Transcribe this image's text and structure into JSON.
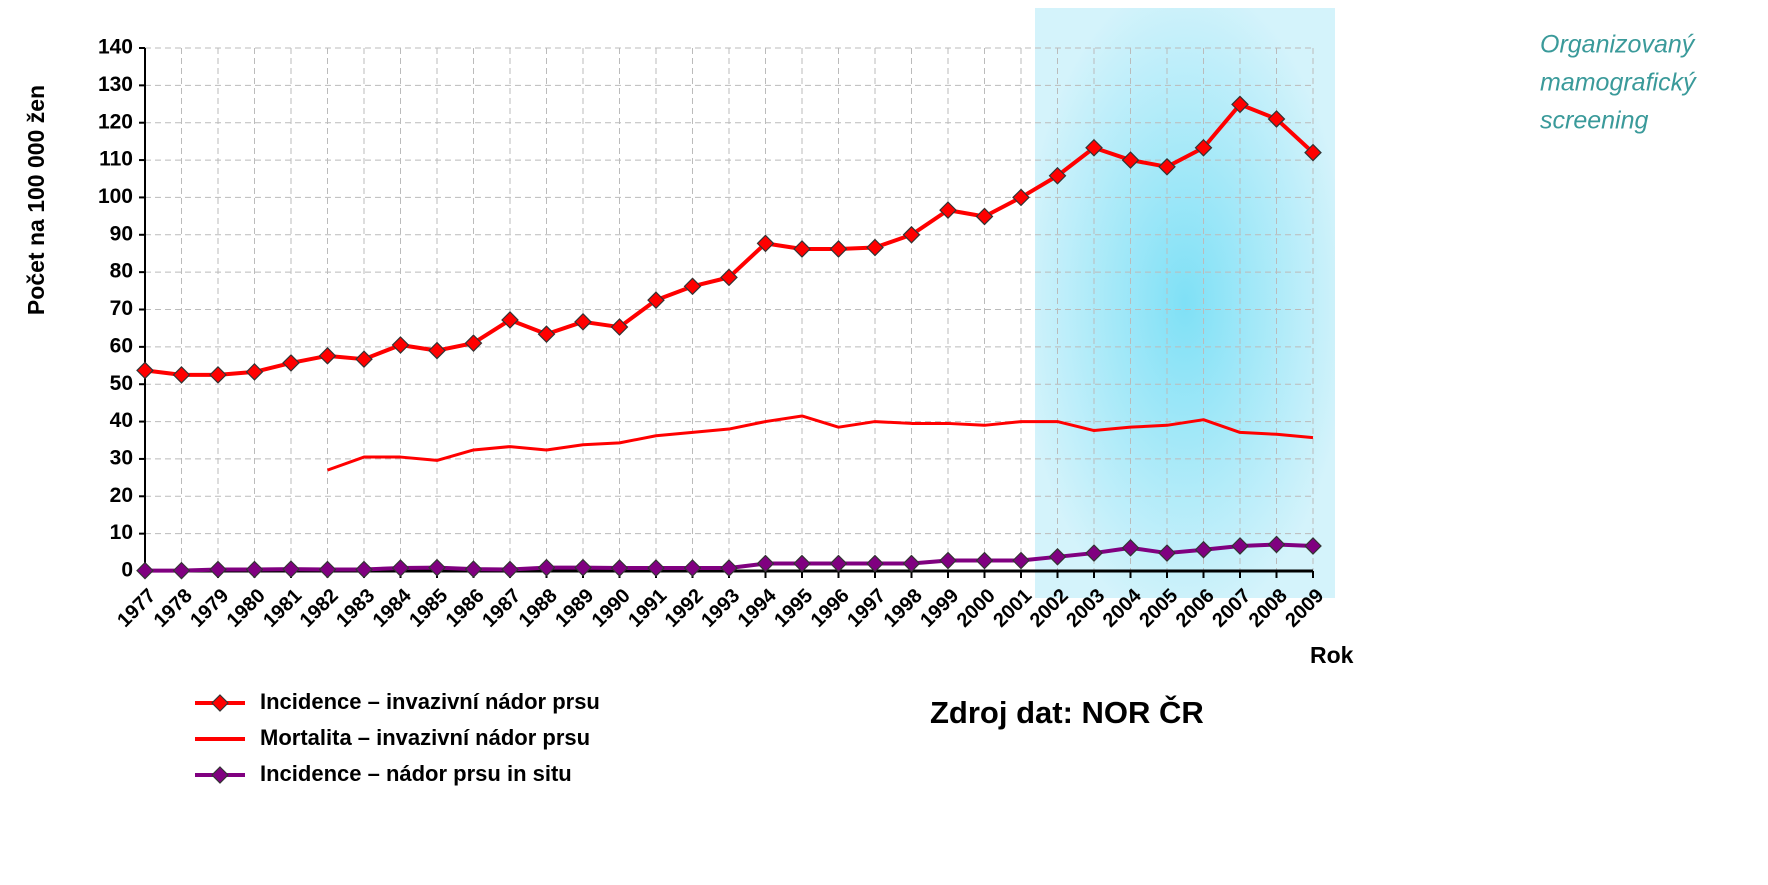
{
  "chart_data": {
    "type": "line",
    "y_label": "Počet  na 100 000 žen",
    "x_label": "Rok",
    "annotation": [
      "Organizovaný",
      "mamografický",
      "screening"
    ],
    "source": "Zdroj dat: NOR ČR",
    "categories": [
      "1977",
      "1978",
      "1979",
      "1980",
      "1981",
      "1982",
      "1983",
      "1984",
      "1985",
      "1986",
      "1987",
      "1988",
      "1989",
      "1990",
      "1991",
      "1992",
      "1993",
      "1994",
      "1995",
      "1996",
      "1997",
      "1998",
      "1999",
      "2000",
      "2001",
      "2002",
      "2003",
      "2004",
      "2005",
      "2006",
      "2007",
      "2008",
      "2009"
    ],
    "series": [
      {
        "name": "Incidence – invazivní nádor prsu",
        "color": "#ff0000",
        "marker": "diamond",
        "values": [
          53.7,
          52.5,
          52.5,
          53.3,
          55.7,
          57.6,
          56.7,
          60.5,
          59,
          61,
          67.2,
          63.4,
          66.7,
          65.3,
          72.5,
          76.2,
          78.6,
          87.7,
          86.2,
          86.2,
          86.6,
          90,
          96.6,
          94.9,
          100,
          105.8,
          113.3,
          110,
          108.2,
          113.3,
          124.9,
          121,
          112
        ]
      },
      {
        "name": "Mortalita – invazivní nádor prsu",
        "color": "#ff0000",
        "marker": "none",
        "values": [
          null,
          null,
          null,
          null,
          null,
          27,
          30.5,
          30.5,
          29.6,
          32.4,
          33.3,
          32.4,
          33.8,
          34.3,
          36.2,
          37.1,
          38,
          40,
          41.5,
          38.5,
          40,
          39.5,
          39.5,
          39,
          40,
          40,
          37.6,
          38.5,
          39,
          40.5,
          37.1,
          36.6,
          35.7
        ]
      },
      {
        "name": "Incidence – nádor prsu in situ",
        "color": "#800080",
        "marker": "diamond",
        "values": [
          0.1,
          0.1,
          0.4,
          0.4,
          0.5,
          0.4,
          0.4,
          0.8,
          0.9,
          0.5,
          0.4,
          0.9,
          0.9,
          0.8,
          0.8,
          0.8,
          0.8,
          2,
          2,
          2,
          2,
          2,
          2.8,
          2.8,
          2.8,
          3.8,
          4.8,
          6.2,
          4.8,
          5.7,
          6.7,
          7.1,
          6.7
        ]
      }
    ],
    "ylim": [
      0,
      140
    ],
    "yticks": [
      0,
      10,
      20,
      30,
      40,
      50,
      60,
      70,
      80,
      90,
      100,
      110,
      120,
      130,
      140
    ],
    "grid": true
  }
}
